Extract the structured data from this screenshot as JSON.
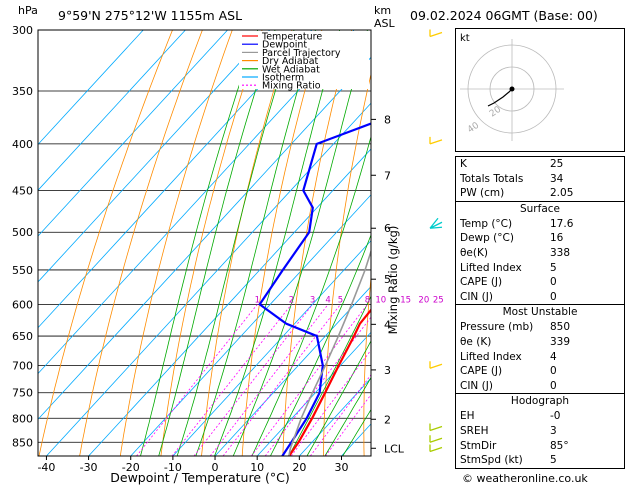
{
  "header": {
    "hpa_label": "hPa",
    "location": "9°59'N  275°12'W  1155m  ASL",
    "km_label": "km",
    "asl_label": "ASL",
    "datetime": "09.02.2024  06GMT  (Base: 00)"
  },
  "legend": [
    {
      "label": "Temperature",
      "color": "#ff0000",
      "dash": ""
    },
    {
      "label": "Dewpoint",
      "color": "#0000ff",
      "dash": ""
    },
    {
      "label": "Parcel Trajectory",
      "color": "#999999",
      "dash": ""
    },
    {
      "label": "Dry Adiabat",
      "color": "#ff8c00",
      "dash": ""
    },
    {
      "label": "Wet Adiabat",
      "color": "#00aa00",
      "dash": ""
    },
    {
      "label": "Isotherm",
      "color": "#00aaff",
      "dash": ""
    },
    {
      "label": "Mixing Ratio",
      "color": "#ff00ff",
      "dash": "2,2"
    }
  ],
  "chart_data": {
    "type": "line",
    "xlabel": "Dewpoint / Temperature (°C)",
    "ylabel": "hPa",
    "mixing_axis_label": "Mixing Ratio (g/kg)",
    "x_ticks": [
      "-40",
      "-30",
      "-20",
      "-10",
      "0",
      "10",
      "20",
      "30"
    ],
    "y_ticks": [
      "300",
      "350",
      "400",
      "450",
      "500",
      "550",
      "600",
      "650",
      "700",
      "750",
      "800",
      "850"
    ],
    "km_ticks": [
      {
        "label": "8",
        "p": 376
      },
      {
        "label": "7",
        "p": 433
      },
      {
        "label": "6",
        "p": 495
      },
      {
        "label": "5",
        "p": 563
      },
      {
        "label": "4",
        "p": 631
      },
      {
        "label": "3",
        "p": 708
      },
      {
        "label": "2",
        "p": 802
      },
      {
        "label": "LCL",
        "p": 863
      }
    ],
    "mixing_ratio_labels": [
      "1",
      "2",
      "3",
      "4",
      "5",
      "8",
      "10",
      "15",
      "20",
      "25"
    ],
    "xlim": [
      -42,
      37
    ],
    "ylim_hpa": [
      300,
      880
    ],
    "series": [
      {
        "name": "Temperature",
        "color": "#ff0000",
        "points": [
          [
            881,
            17.6
          ],
          [
            850,
            16.8
          ],
          [
            800,
            14.8
          ],
          [
            750,
            12.3
          ],
          [
            700,
            9.6
          ],
          [
            650,
            6.8
          ],
          [
            630,
            5.5
          ],
          [
            600,
            5.0
          ],
          [
            550,
            1.0
          ],
          [
            500,
            -4.2
          ],
          [
            450,
            -9.5
          ],
          [
            400,
            -16.0
          ],
          [
            350,
            -23.5
          ],
          [
            340,
            -25.2
          ]
        ]
      },
      {
        "name": "Dewpoint",
        "color": "#0000ff",
        "points": [
          [
            881,
            16.0
          ],
          [
            850,
            15.1
          ],
          [
            800,
            13.5
          ],
          [
            750,
            11.0
          ],
          [
            700,
            5.8
          ],
          [
            650,
            -2.0
          ],
          [
            630,
            -12.0
          ],
          [
            600,
            -22.5
          ],
          [
            550,
            -24.5
          ],
          [
            500,
            -26.5
          ],
          [
            470,
            -31.0
          ],
          [
            450,
            -37.0
          ],
          [
            400,
            -44.0
          ],
          [
            350,
            -22.0
          ],
          [
            300,
            -38.0
          ]
        ]
      },
      {
        "name": "Parcel Trajectory",
        "color": "#999999",
        "points": [
          [
            881,
            17.6
          ],
          [
            863,
            16.2
          ],
          [
            800,
            12.2
          ],
          [
            750,
            9.3
          ],
          [
            700,
            6.4
          ],
          [
            650,
            3.1
          ],
          [
            600,
            -0.7
          ],
          [
            550,
            -5.0
          ],
          [
            500,
            -10.4
          ],
          [
            450,
            -16.6
          ],
          [
            400,
            -24.2
          ],
          [
            350,
            -33.0
          ]
        ]
      }
    ]
  },
  "hodograph": {
    "label": "kt",
    "ring_labels": [
      "20",
      "40"
    ]
  },
  "indices": [
    {
      "label": "K",
      "value": "25"
    },
    {
      "label": "Totals Totals",
      "value": "34"
    },
    {
      "label": "PW (cm)",
      "value": "2.05"
    }
  ],
  "surface": {
    "title": "Surface",
    "rows": [
      {
        "label": "Temp (°C)",
        "value": "17.6"
      },
      {
        "label": "Dewp (°C)",
        "value": "16"
      },
      {
        "label": "θe(K)",
        "value": "338"
      },
      {
        "label": "Lifted Index",
        "value": "5"
      },
      {
        "label": "CAPE (J)",
        "value": "0"
      },
      {
        "label": "CIN (J)",
        "value": "0"
      }
    ]
  },
  "unstable": {
    "title": "Most Unstable",
    "rows": [
      {
        "label": "Pressure (mb)",
        "value": "850"
      },
      {
        "label": "θe (K)",
        "value": "339"
      },
      {
        "label": "Lifted Index",
        "value": "4"
      },
      {
        "label": "CAPE (J)",
        "value": "0"
      },
      {
        "label": "CIN (J)",
        "value": "0"
      }
    ]
  },
  "hodo_table": {
    "title": "Hodograph",
    "rows": [
      {
        "label": "EH",
        "value": "-0"
      },
      {
        "label": "SREH",
        "value": "3"
      },
      {
        "label": "StmDir",
        "value": "85°"
      },
      {
        "label": "StmSpd (kt)",
        "value": "5"
      }
    ]
  },
  "footer": "© weatheronline.co.uk"
}
